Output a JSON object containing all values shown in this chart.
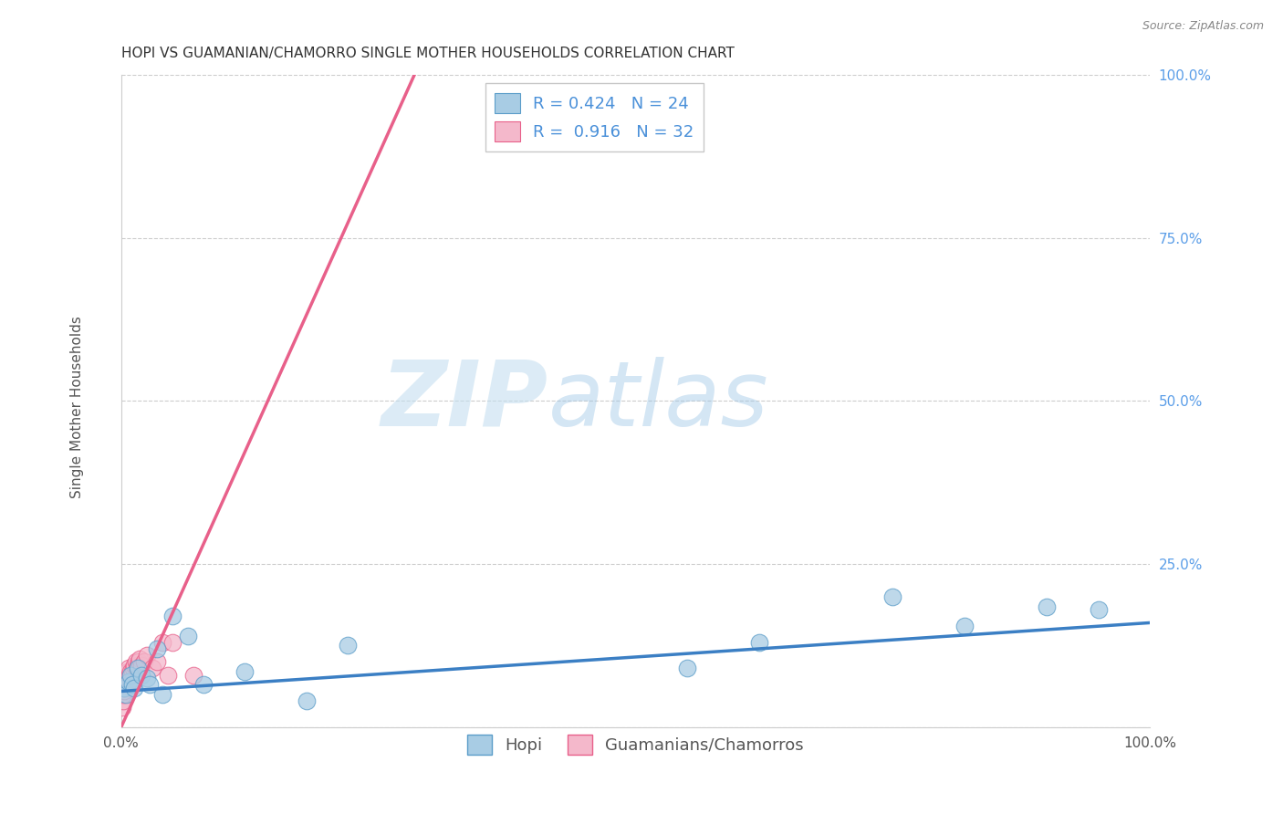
{
  "title": "HOPI VS GUAMANIAN/CHAMORRO SINGLE MOTHER HOUSEHOLDS CORRELATION CHART",
  "source": "Source: ZipAtlas.com",
  "ylabel": "Single Mother Households",
  "xlim": [
    0,
    1
  ],
  "ylim": [
    0,
    1
  ],
  "hopi_R": 0.424,
  "hopi_N": 24,
  "guam_R": 0.916,
  "guam_N": 32,
  "hopi_color": "#a8cce4",
  "guam_color": "#f4b8cb",
  "hopi_edge_color": "#5b9dc9",
  "guam_edge_color": "#e8608a",
  "hopi_line_color": "#3b7fc4",
  "guam_line_color": "#e8608a",
  "background_color": "#ffffff",
  "watermark_zip": "ZIP",
  "watermark_atlas": "atlas",
  "hopi_x": [
    0.003,
    0.005,
    0.007,
    0.009,
    0.011,
    0.013,
    0.016,
    0.02,
    0.025,
    0.028,
    0.035,
    0.04,
    0.05,
    0.065,
    0.08,
    0.12,
    0.18,
    0.22,
    0.55,
    0.62,
    0.75,
    0.82,
    0.9,
    0.95
  ],
  "hopi_y": [
    0.06,
    0.05,
    0.07,
    0.08,
    0.065,
    0.06,
    0.09,
    0.08,
    0.075,
    0.065,
    0.12,
    0.05,
    0.17,
    0.14,
    0.065,
    0.085,
    0.04,
    0.125,
    0.09,
    0.13,
    0.2,
    0.155,
    0.185,
    0.18
  ],
  "guam_x": [
    0.001,
    0.002,
    0.002,
    0.003,
    0.003,
    0.004,
    0.004,
    0.005,
    0.005,
    0.006,
    0.006,
    0.007,
    0.008,
    0.009,
    0.01,
    0.011,
    0.012,
    0.013,
    0.014,
    0.015,
    0.016,
    0.017,
    0.018,
    0.02,
    0.022,
    0.025,
    0.03,
    0.035,
    0.04,
    0.045,
    0.05,
    0.07
  ],
  "guam_y": [
    0.03,
    0.04,
    0.05,
    0.055,
    0.06,
    0.065,
    0.07,
    0.07,
    0.075,
    0.08,
    0.085,
    0.09,
    0.08,
    0.085,
    0.065,
    0.085,
    0.09,
    0.095,
    0.1,
    0.09,
    0.095,
    0.1,
    0.105,
    0.095,
    0.1,
    0.11,
    0.09,
    0.1,
    0.13,
    0.08,
    0.13,
    0.08
  ],
  "hopi_line_x0": 0.0,
  "hopi_line_x1": 1.0,
  "hopi_line_y0": 0.055,
  "hopi_line_y1": 0.16,
  "guam_line_x0": 0.0,
  "guam_line_x1": 0.285,
  "guam_line_y0": 0.0,
  "guam_line_y1": 1.0,
  "title_fontsize": 11,
  "tick_fontsize": 11,
  "label_fontsize": 11,
  "legend_fontsize": 13
}
